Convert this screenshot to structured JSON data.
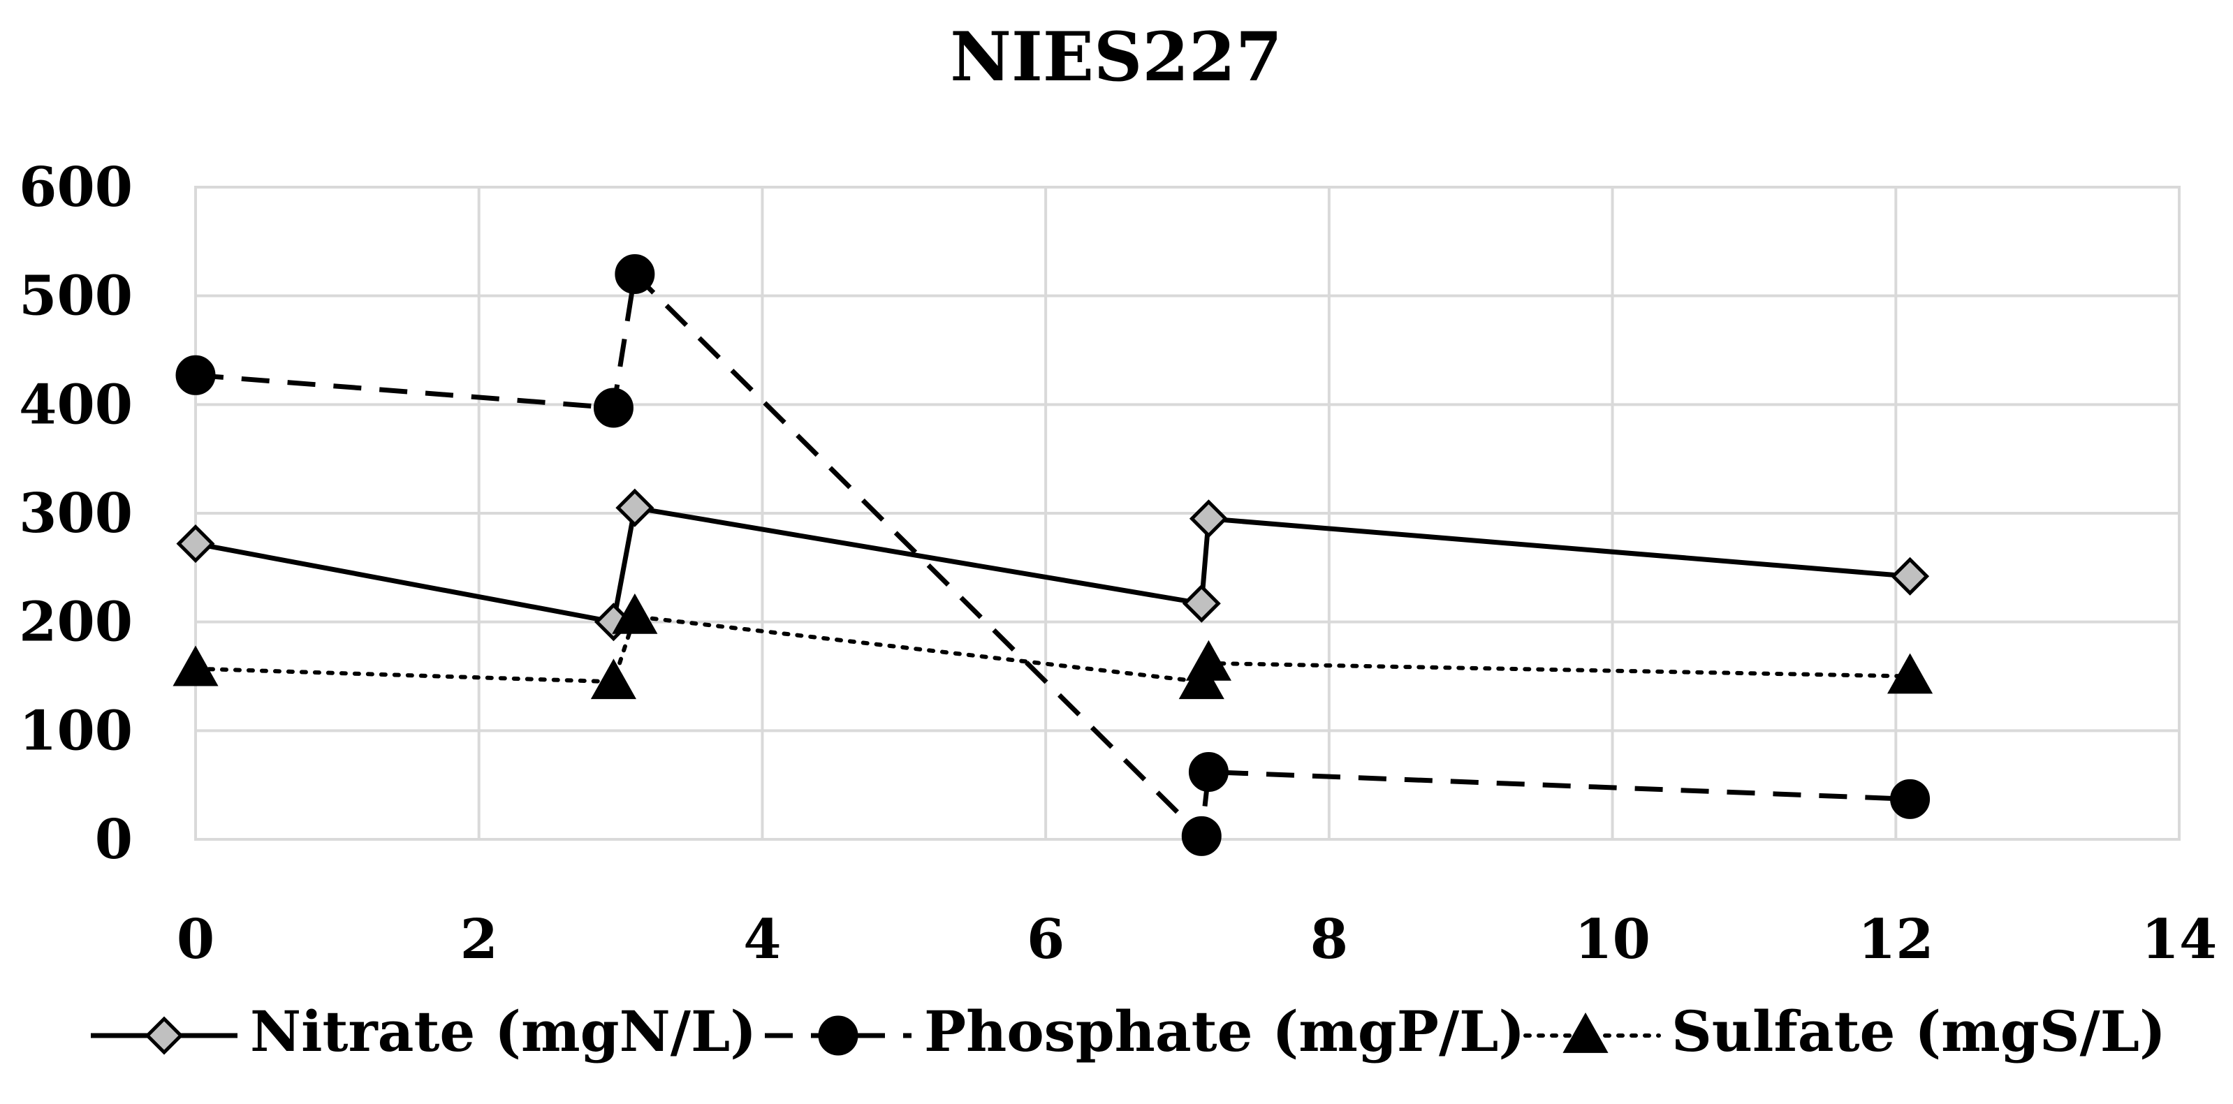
{
  "chart_data": {
    "type": "line",
    "title": "NIES227",
    "xlabel": "",
    "ylabel": "",
    "xlim": [
      0,
      14
    ],
    "ylim": [
      0,
      600
    ],
    "x_ticks": [
      0,
      2,
      4,
      6,
      8,
      10,
      12,
      14
    ],
    "y_ticks": [
      0,
      100,
      200,
      300,
      400,
      500,
      600
    ],
    "grid": true,
    "legend_position": "bottom",
    "series": [
      {
        "name": "Nitrate (mgN/L)",
        "marker": "diamond",
        "line_style": "solid",
        "marker_fill": "#c0c0c0",
        "points": [
          [
            0,
            272
          ],
          [
            2.95,
            200
          ],
          [
            3.1,
            305
          ],
          [
            7.1,
            217
          ],
          [
            7.15,
            295
          ],
          [
            12.1,
            242
          ]
        ]
      },
      {
        "name": "Phosphate (mgP/L)",
        "marker": "circle",
        "line_style": "dashed",
        "marker_fill": "#000000",
        "points": [
          [
            0,
            427
          ],
          [
            2.95,
            397
          ],
          [
            3.1,
            520
          ],
          [
            7.1,
            3
          ],
          [
            7.15,
            62
          ],
          [
            12.1,
            37
          ]
        ]
      },
      {
        "name": "Sulfate (mgS/L)",
        "marker": "triangle",
        "line_style": "dotted",
        "marker_fill": "#000000",
        "points": [
          [
            0,
            157
          ],
          [
            2.95,
            145
          ],
          [
            3.1,
            205
          ],
          [
            7.1,
            145
          ],
          [
            7.15,
            162
          ],
          [
            12.1,
            150
          ]
        ]
      }
    ]
  }
}
